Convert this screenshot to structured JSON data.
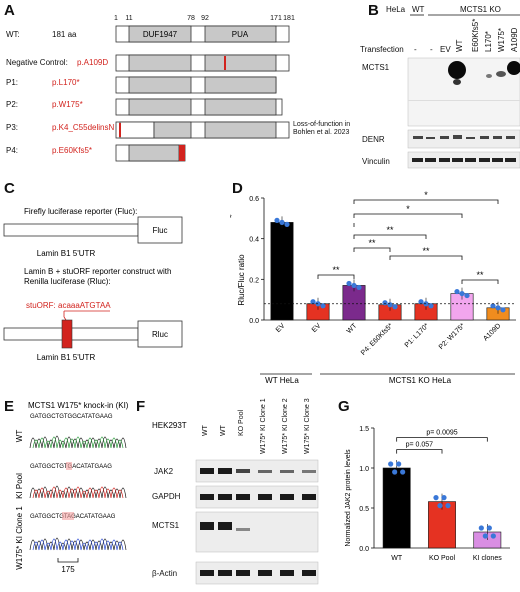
{
  "panels": {
    "a": "A",
    "b": "B",
    "c": "C",
    "d": "D",
    "e": "E",
    "f": "F",
    "g": "G"
  },
  "panelA": {
    "ticks": [
      "1",
      "11",
      "78",
      "92",
      "171",
      "181"
    ],
    "domains": [
      "DUF1947",
      "PUA"
    ],
    "rows": [
      {
        "label": "WT:",
        "value": "181 aa",
        "color": "#111111"
      },
      {
        "label": "Negative Control:",
        "value": "p.A109D",
        "color": "#d2231e"
      },
      {
        "label": "P1:",
        "value": "p.L170*",
        "color": "#d2231e"
      },
      {
        "label": "P2:",
        "value": "p.W175*",
        "color": "#d2231e"
      },
      {
        "label": "P3:",
        "value": "p.K4_C55delinsN",
        "color": "#d2231e"
      },
      {
        "label": "P4:",
        "value": "p.E60Kfs5*",
        "color": "#d2231e"
      }
    ],
    "p3_note_line1": "Loss-of-function in",
    "p3_note_line2": "Bohlen et al. 2023"
  },
  "panelB": {
    "hela": "HeLa",
    "wt": "WT",
    "ko": "MCTS1 KO",
    "transfection": "Transfection",
    "lanes": [
      "-",
      "-",
      "EV",
      "WT",
      "E60Kfs5*",
      "L170*",
      "W175*",
      "A109D"
    ],
    "blots": [
      "MCTS1",
      "DENR",
      "Vinculin"
    ]
  },
  "panelC": {
    "title1": "Firefly luciferase reporter (Fluc):",
    "fluc": "Fluc",
    "utr1": "Lamin B1 5'UTR",
    "title2a": "Lamin B + stuORF reporter construct with",
    "title2b": "Renilla luciferase (Rluc):",
    "stuorf": "stuORF: acaaaATGTAA",
    "rluc": "Rluc",
    "utr2": "Lamin B1 5'UTR"
  },
  "chart_data": [
    {
      "type": "bar",
      "ylabel": "Rluc/Fluc ratio",
      "ylim": [
        0,
        0.6
      ],
      "yticks": [
        "0.0",
        "0.2",
        "0.4",
        "0.6"
      ],
      "categories": [
        "EV",
        "EV",
        "WT",
        "P4: E60Kfs5*",
        "P1: L170*",
        "P2: W175*",
        "A109D"
      ],
      "values": [
        0.48,
        0.08,
        0.17,
        0.075,
        0.08,
        0.13,
        0.06
      ],
      "colors": [
        "#000000",
        "#e53222",
        "#7b2a8c",
        "#e53222",
        "#e53222",
        "#f2a6ee",
        "#f08c1e"
      ],
      "reference_line": 0.08,
      "significance": [
        "**",
        "**",
        "**",
        "**",
        "**",
        "*",
        "*",
        "*"
      ],
      "groups": [
        "WT HeLa",
        "MCTS1 KO HeLa"
      ]
    },
    {
      "type": "bar",
      "ylabel": "Normalized JAK2 protein levels",
      "ylim": [
        0,
        1.5
      ],
      "yticks": [
        "0.0",
        "0.5",
        "1.0",
        "1.5"
      ],
      "categories": [
        "WT",
        "KO Pool",
        "KI clones"
      ],
      "values": [
        1.0,
        0.58,
        0.2
      ],
      "colors": [
        "#000000",
        "#e53222",
        "#d98ee3"
      ],
      "pvalues": [
        "p= 0.057",
        "p= 0.0095"
      ]
    }
  ],
  "panelE": {
    "title": "MCTS1 W175* knock-in (KI)",
    "rows": [
      {
        "label": "WT",
        "seq": "GATGGCTGTGGCATATGAAG"
      },
      {
        "label": "KI Pool",
        "seq": "GATGGCTGTGACATATGAAG"
      },
      {
        "label": "W175* KI Clone 1",
        "seq": "GATGGCTGTAGACATATGAAG"
      }
    ],
    "position": "175"
  },
  "panelF": {
    "cell": "HEK293T",
    "lanes": [
      "WT",
      "WT",
      "KO Pool",
      "W175* KI Clone 1",
      "W175* KI Clone 2",
      "W175* KI Clone 3"
    ],
    "blots": [
      "JAK2",
      "GAPDH",
      "MCTS1",
      "β-Actin"
    ]
  }
}
